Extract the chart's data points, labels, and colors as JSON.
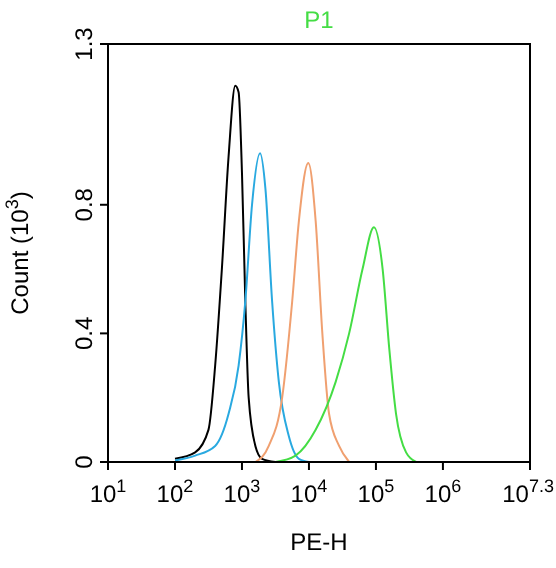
{
  "chart_data": {
    "type": "line",
    "title": "P1",
    "xlabel": "PE-H",
    "ylabel": "Count (10$^{3}$)",
    "log": "x",
    "xlim": [
      10,
      19952623
    ],
    "xticks": [
      {
        "value": 10,
        "label": "10$^{1}$"
      },
      {
        "value": 100,
        "label": "10$^{2}$"
      },
      {
        "value": 1000,
        "label": "10$^{3}$"
      },
      {
        "value": 10000,
        "label": "10$^{4}$"
      },
      {
        "value": 100000,
        "label": "10$^{5}$"
      },
      {
        "value": 1000000,
        "label": "10$^{6}$"
      },
      {
        "value": 19952623,
        "label": "10$^{7.3}$"
      }
    ],
    "ylim": [
      0,
      1.3
    ],
    "yticks": [
      0,
      0.4,
      0.8,
      1.3
    ],
    "grid": false,
    "series": [
      {
        "color": "#000000",
        "x": [
          100,
          200,
          316,
          398,
          501,
          631,
          794,
          891,
          1000,
          1122,
          1259,
          1585,
          1995,
          3162
        ],
        "values": [
          0.01,
          0.03,
          0.1,
          0.3,
          0.6,
          0.95,
          1.17,
          1.15,
          0.9,
          0.5,
          0.2,
          0.05,
          0.01,
          0
        ]
      },
      {
        "color": "#29a9e0",
        "x": [
          100,
          200,
          398,
          631,
          891,
          1122,
          1413,
          1862,
          2239,
          2818,
          3548,
          5012,
          7079,
          10000
        ],
        "values": [
          0.005,
          0.02,
          0.05,
          0.15,
          0.3,
          0.5,
          0.8,
          0.96,
          0.85,
          0.5,
          0.25,
          0.08,
          0.01,
          0
        ]
      },
      {
        "color": "#f0a070",
        "x": [
          1585,
          2512,
          3981,
          5623,
          7079,
          9772,
          12589,
          15849,
          19953,
          28184,
          39811
        ],
        "values": [
          0,
          0.05,
          0.2,
          0.5,
          0.75,
          0.93,
          0.75,
          0.4,
          0.15,
          0.05,
          0
        ]
      },
      {
        "color": "#44dd44",
        "x": [
          3162,
          6310,
          12589,
          25119,
          39811,
          63096,
          93325,
          125893,
          158489,
          199526,
          281838,
          398107
        ],
        "values": [
          0,
          0.02,
          0.1,
          0.25,
          0.4,
          0.6,
          0.73,
          0.6,
          0.35,
          0.15,
          0.03,
          0
        ]
      }
    ]
  }
}
